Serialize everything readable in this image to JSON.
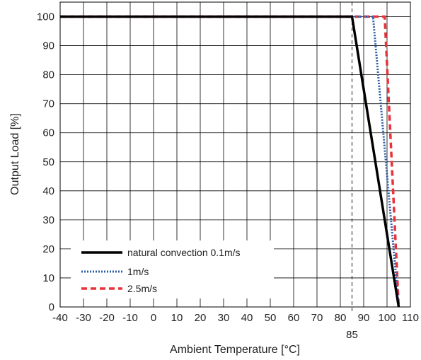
{
  "chart_data": {
    "type": "line",
    "xlabel": "Ambient Temperature [°C]",
    "ylabel": "Output Load [%]",
    "xlim": [
      -40,
      110
    ],
    "ylim": [
      0,
      105
    ],
    "x_ticks": [
      -40,
      -30,
      -20,
      -10,
      0,
      10,
      20,
      30,
      40,
      50,
      60,
      70,
      80,
      90,
      100,
      110
    ],
    "y_ticks": [
      0,
      10,
      20,
      30,
      40,
      50,
      60,
      70,
      80,
      90,
      100
    ],
    "grid": true,
    "legend_position": "bottom-left",
    "annotations": [
      {
        "type": "vertical-dashed-line",
        "x": 85,
        "label": "85"
      }
    ],
    "series": [
      {
        "name": "natural convection 0.1m/s",
        "color": "#000000",
        "style": "solid",
        "points": [
          [
            -40,
            100
          ],
          [
            85,
            100
          ],
          [
            105,
            0
          ]
        ]
      },
      {
        "name": "1m/s",
        "color": "#2f5fa8",
        "style": "dotted",
        "points": [
          [
            -40,
            100
          ],
          [
            94,
            100
          ],
          [
            105,
            0
          ]
        ]
      },
      {
        "name": "2.5m/s",
        "color": "#e8333a",
        "style": "dashed",
        "points": [
          [
            -40,
            100
          ],
          [
            99,
            100
          ],
          [
            105,
            0
          ]
        ]
      }
    ]
  }
}
